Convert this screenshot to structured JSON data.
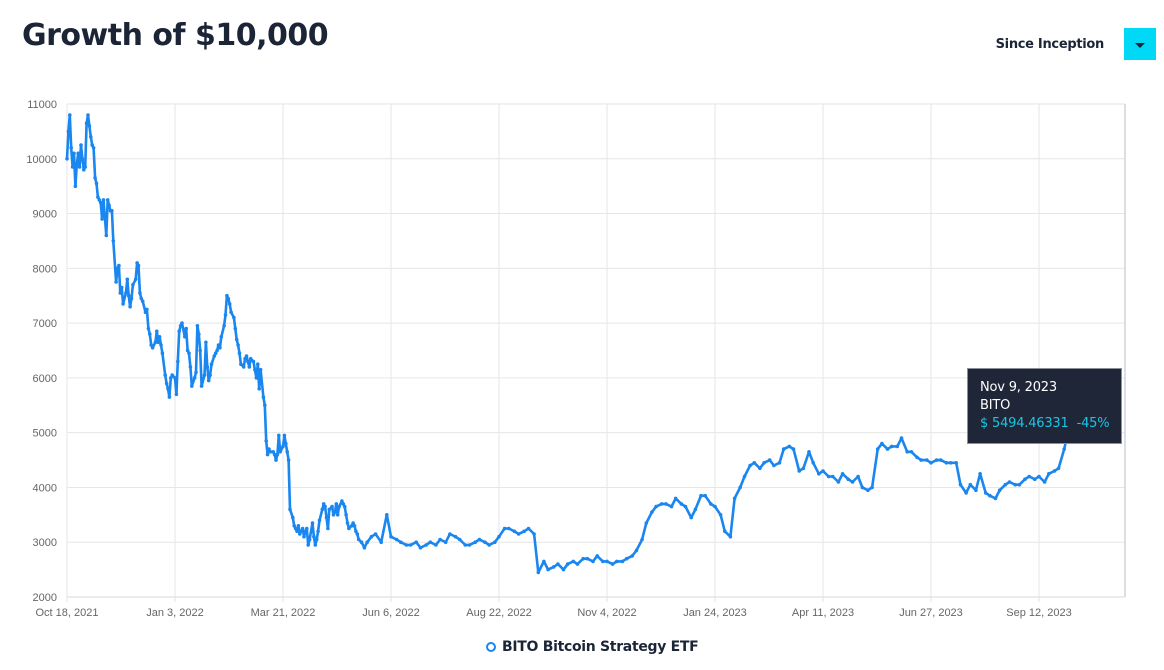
{
  "header": {
    "title": "Growth of $10,000",
    "range_label": "Since Inception",
    "range_button_icon": "caret-down-icon"
  },
  "colors": {
    "line": "#1a86f0",
    "accent": "#00d9f5",
    "tooltip_bg": "#1e2638",
    "tooltip_value": "#19c6e6",
    "grid": "#e6e6e6",
    "text": "#1c2536"
  },
  "tooltip": {
    "date": "Nov 9, 2023",
    "name": "BITO",
    "value": "$ 5494.46331",
    "change": "-45%"
  },
  "legend": {
    "icon": "circle-marker-icon",
    "label": "BITO Bitcoin Strategy ETF"
  },
  "chart_data": {
    "type": "line",
    "title": "Growth of $10,000",
    "xlabel": "",
    "ylabel": "",
    "ylim": [
      2000,
      11000
    ],
    "yticks": [
      2000,
      3000,
      4000,
      5000,
      6000,
      7000,
      8000,
      9000,
      10000,
      11000
    ],
    "xticks": [
      "Oct 18, 2021",
      "Jan 3, 2022",
      "Mar 21, 2022",
      "Jun 6, 2022",
      "Aug 22, 2022",
      "Nov 4, 2022",
      "Jan 24, 2023",
      "Apr 11, 2023",
      "Jun 27, 2023",
      "Sep 12, 2023"
    ],
    "grid": true,
    "legend_position": "bottom",
    "series": [
      {
        "name": "BITO Bitcoin Strategy ETF",
        "x_days_since_inception": [
          0,
          1,
          2,
          3,
          4,
          5,
          6,
          7,
          8,
          9,
          10,
          11,
          12,
          13,
          14,
          15,
          16,
          17,
          18,
          19,
          20,
          21,
          22,
          23,
          24,
          25,
          26,
          28,
          29,
          30,
          31,
          32,
          33,
          35,
          36,
          37,
          38,
          39,
          40,
          42,
          43,
          44,
          45,
          46,
          47,
          49,
          50,
          51,
          52,
          53,
          54,
          56,
          57,
          58,
          59,
          60,
          61,
          63,
          64,
          65,
          66,
          67,
          68,
          70,
          71,
          72,
          73,
          74,
          75,
          77,
          78,
          79,
          80,
          81,
          82,
          84,
          85,
          86,
          87,
          88,
          89,
          91,
          92,
          93,
          94,
          95,
          96,
          98,
          99,
          100,
          101,
          102,
          103,
          105,
          106,
          107,
          108,
          109,
          110,
          112,
          113,
          114,
          115,
          116,
          117,
          119,
          120,
          121,
          122,
          123,
          124,
          126,
          127,
          128,
          129,
          130,
          131,
          133,
          134,
          135,
          136,
          137,
          138,
          140,
          141,
          142,
          143,
          144,
          145,
          147,
          148,
          149,
          150,
          151,
          152,
          154,
          155,
          156,
          157,
          158,
          159,
          161,
          162,
          163,
          164,
          165,
          166,
          168,
          169,
          170,
          171,
          172,
          173,
          175,
          176,
          177,
          178,
          179,
          180,
          182,
          183,
          184,
          185,
          186,
          187,
          189,
          190,
          191,
          192,
          193,
          194,
          196,
          197,
          198,
          199,
          200,
          201,
          203,
          204,
          205,
          206,
          207,
          208,
          210,
          212,
          214,
          217,
          220,
          224,
          228,
          231,
          235,
          238,
          242,
          245,
          249,
          252,
          256,
          259,
          263,
          266,
          270,
          273,
          277,
          280,
          284,
          287,
          291,
          294,
          298,
          301,
          305,
          308,
          312,
          315,
          319,
          322,
          326,
          329,
          333,
          336,
          340,
          343,
          347,
          350,
          354,
          357,
          361,
          364,
          368,
          371,
          375,
          378,
          382,
          385,
          389,
          392,
          396,
          399,
          403,
          406,
          410,
          413,
          417,
          420,
          424,
          427,
          431,
          434,
          438,
          441,
          445,
          448,
          452,
          455,
          459,
          462,
          466,
          469,
          473,
          476,
          480,
          483,
          487,
          490,
          494,
          497,
          501,
          504,
          508,
          511,
          515,
          518,
          522,
          525,
          529,
          532,
          536,
          539,
          543,
          546,
          550,
          553,
          557,
          560,
          564,
          567,
          571,
          574,
          578,
          581,
          585,
          588,
          592,
          595,
          599,
          602,
          606,
          609,
          613,
          616,
          620,
          623,
          627,
          630,
          634,
          637,
          641,
          644,
          648,
          651,
          655,
          658,
          662,
          665,
          669,
          672,
          676,
          679,
          683,
          686,
          690,
          693,
          697,
          700,
          704,
          707,
          711,
          714,
          718,
          722,
          726,
          730,
          734,
          738,
          742,
          746,
          750
        ],
        "values": [
          10000,
          10500,
          10800,
          10200,
          9850,
          10100,
          9500,
          9900,
          10100,
          9850,
          10250,
          10000,
          9800,
          9850,
          10650,
          10800,
          10600,
          10400,
          10250,
          10200,
          9650,
          9550,
          9300,
          9250,
          9200,
          8900,
          9250,
          8600,
          9250,
          9150,
          9050,
          9050,
          8500,
          7750,
          8000,
          8050,
          7550,
          7650,
          7350,
          7550,
          7800,
          7500,
          7300,
          7450,
          7700,
          7800,
          8100,
          8050,
          7550,
          7450,
          7400,
          7200,
          7250,
          6900,
          6800,
          6600,
          6550,
          6650,
          6850,
          6650,
          6750,
          6600,
          6450,
          6050,
          5900,
          5800,
          5650,
          6000,
          6050,
          6000,
          5700,
          6300,
          6850,
          6950,
          7000,
          6750,
          6900,
          6500,
          6450,
          6200,
          5850,
          6000,
          6100,
          6950,
          6800,
          6500,
          5850,
          6050,
          6650,
          6200,
          5950,
          6050,
          6250,
          6400,
          6450,
          6500,
          6600,
          6550,
          6750,
          6950,
          7150,
          7500,
          7450,
          7350,
          7200,
          7100,
          6900,
          6700,
          6600,
          6450,
          6250,
          6200,
          6350,
          6400,
          6300,
          6200,
          6350,
          6300,
          6150,
          6000,
          6250,
          5800,
          6150,
          5650,
          5500,
          4850,
          4600,
          4700,
          4650,
          4650,
          4600,
          4500,
          4600,
          4950,
          4650,
          4750,
          4950,
          4800,
          4650,
          4500,
          3600,
          3450,
          3300,
          3250,
          3200,
          3300,
          3150,
          3250,
          3100,
          3200,
          3250,
          2950,
          3050,
          3350,
          3100,
          2950,
          3050,
          3200,
          3400,
          3600,
          3700,
          3650,
          3450,
          3250,
          3600,
          3650,
          3500,
          3550,
          3700,
          3500,
          3650,
          3750,
          3700,
          3650,
          3500,
          3350,
          3250,
          3300,
          3350,
          3300,
          3200,
          3150,
          3050,
          3000,
          2900,
          3000,
          3100,
          3150,
          3000,
          3500,
          3100,
          3050,
          3000,
          2950,
          2950,
          3000,
          2900,
          2950,
          3000,
          2950,
          3050,
          3000,
          3150,
          3100,
          3050,
          2950,
          2950,
          3000,
          3050,
          3000,
          2950,
          3000,
          3100,
          3250,
          3250,
          3200,
          3150,
          3200,
          3250,
          3150,
          2450,
          2650,
          2500,
          2550,
          2600,
          2500,
          2600,
          2650,
          2600,
          2700,
          2700,
          2650,
          2750,
          2650,
          2650,
          2600,
          2650,
          2650,
          2700,
          2750,
          2850,
          3050,
          3350,
          3550,
          3650,
          3700,
          3700,
          3650,
          3800,
          3700,
          3650,
          3450,
          3600,
          3850,
          3850,
          3700,
          3650,
          3500,
          3200,
          3100,
          3800,
          4000,
          4200,
          4400,
          4450,
          4350,
          4450,
          4500,
          4400,
          4450,
          4700,
          4750,
          4700,
          4300,
          4350,
          4650,
          4450,
          4250,
          4300,
          4200,
          4200,
          4100,
          4250,
          4150,
          4100,
          4200,
          4000,
          3950,
          4000,
          4700,
          4800,
          4700,
          4750,
          4750,
          4900,
          4650,
          4650,
          4550,
          4500,
          4500,
          4450,
          4500,
          4500,
          4450,
          4450,
          4450,
          4050,
          3900,
          4050,
          3950,
          4250,
          3900,
          3850,
          3800,
          3950,
          4050,
          4100,
          4050,
          4050,
          4150,
          4200,
          4150,
          4200,
          4100,
          4250,
          4300,
          4350,
          4700,
          5050,
          5300,
          5450,
          5490,
          5494.46
        ]
      }
    ],
    "hover_point": {
      "date": "Nov 9, 2023",
      "series": "BITO",
      "value": 5494.46331,
      "change_pct": -45
    }
  }
}
